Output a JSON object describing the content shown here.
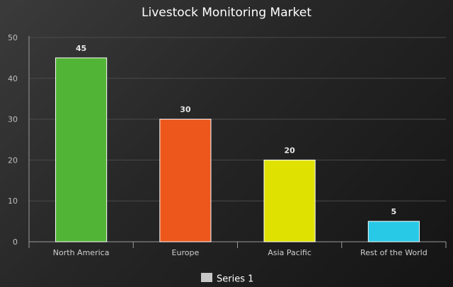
{
  "chart_data": {
    "type": "bar",
    "title": "Livestock Monitoring Market",
    "categories": [
      "North America",
      "Europe",
      "Asia Pacific",
      "Rest of the World"
    ],
    "series": [
      {
        "name": "Series 1",
        "values": [
          45,
          30,
          20,
          5
        ],
        "colors": [
          "#52b436",
          "#ed571c",
          "#dfe200",
          "#27c9e6"
        ]
      }
    ],
    "ylim": [
      0,
      50
    ],
    "yticks": [
      0,
      10,
      20,
      30,
      40,
      50
    ],
    "grid": true,
    "data_labels": true,
    "legend_position": "bottom-center",
    "legend_swatch_color": "#c8c8c8",
    "background_color": "#262626"
  }
}
